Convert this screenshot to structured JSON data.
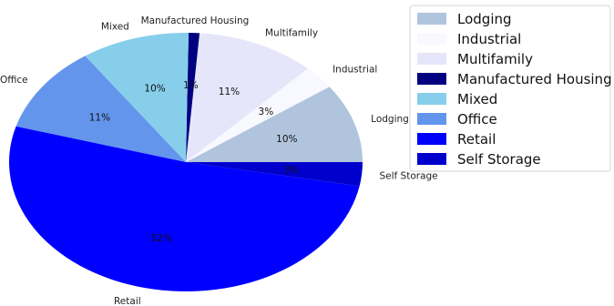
{
  "chart_data": {
    "type": "pie",
    "start_angle_deg": 0,
    "direction": "counterclockwise",
    "legend_placement": "top-right",
    "slices": [
      {
        "label": "Lodging",
        "value": 10,
        "pct_label": "10%",
        "color": "#b0c4de"
      },
      {
        "label": "Industrial",
        "value": 3,
        "pct_label": "3%",
        "color": "#f8f8ff"
      },
      {
        "label": "Multifamily",
        "value": 11,
        "pct_label": "11%",
        "color": "#e6e6fa"
      },
      {
        "label": "Manufactured Housing",
        "value": 1,
        "pct_label": "1%",
        "color": "#000080"
      },
      {
        "label": "Mixed",
        "value": 10,
        "pct_label": "10%",
        "color": "#87ceeb"
      },
      {
        "label": "Office",
        "value": 11,
        "pct_label": "11%",
        "color": "#6495ed"
      },
      {
        "label": "Retail",
        "value": 52,
        "pct_label": "52%",
        "color": "#0000ff"
      },
      {
        "label": "Self Storage",
        "value": 3,
        "pct_label": "3%",
        "color": "#0000cd"
      }
    ]
  }
}
